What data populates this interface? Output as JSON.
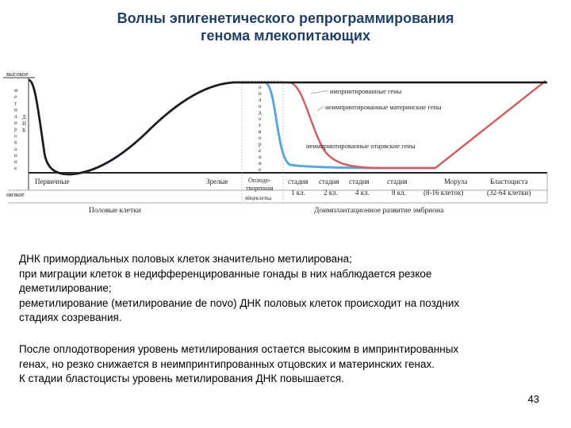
{
  "title": {
    "line1": "Волны эпигенетического репрограммирования",
    "line2": "генома млекопитающих"
  },
  "diagram": {
    "y_high": "высокое",
    "y_low": "низкое",
    "y_axis_word": "метилирование ДНК",
    "y_axis_chars": [
      "м",
      "е",
      "т",
      "и",
      "л",
      "и",
      "р",
      "о",
      "в",
      "а",
      "н",
      "и",
      "е"
    ],
    "y_axis_chars2": [
      "Д",
      "Н",
      "К"
    ],
    "fert_chars": [
      "о",
      "п",
      "л",
      "о",
      "д",
      "о",
      "т",
      "в",
      "о",
      "р",
      "е",
      "н",
      "и",
      "е"
    ],
    "curve_labels": {
      "imprinted": "импринтированные гены",
      "maternal": "неимпринтированные материнские гены",
      "paternal": "неимпринтированные отцовские гены"
    },
    "stage_labels": {
      "primary": "Первичные",
      "mature": "Зрелые",
      "zygote_l1": "Оплодо-",
      "zygote_l2": "творенная",
      "zygote_l3": "яйцеклетка",
      "stage1_top": "стадия",
      "stage1_bot": "1 кл.",
      "stage2_top": "стадия",
      "stage2_bot": "2 кл.",
      "stage4_top": "стадия",
      "stage4_bot": "4 кл.",
      "stage8_top": "стадия",
      "stage8_bot": "8 кл.",
      "morula_top": "Морула",
      "morula_bot": "(8-16 клеток)",
      "blasto_top": "Бластоциста",
      "blasto_bot": "(32-64 клетки)"
    },
    "section_germ": "Половые клетки",
    "section_embryo": "Доимплантационное развитие эмбриона",
    "colors": {
      "imprinted": "#1a1a1a",
      "maternal": "#d06060",
      "paternal": "#5aa8d8"
    }
  },
  "text": {
    "p1": [
      "ДНК примордиальных половых клеток значительно метилирована;",
      "при миграции клеток в недифференцированные гонады в них наблюдается резкое",
      "деметилирование;",
      "реметилирование (метилирование de novo) ДНК половых клеток происходит на поздних",
      "стадиях созревания."
    ],
    "p2": [
      "После оплодотворения уровень метилирования остается высоким в импринтированных",
      "генах, но резко снижается в неимпринтипрованных отцовских и материнских генах.",
      "К стадии бластоцисты уровень метилирования ДНК повышается."
    ]
  },
  "page_number": "43"
}
